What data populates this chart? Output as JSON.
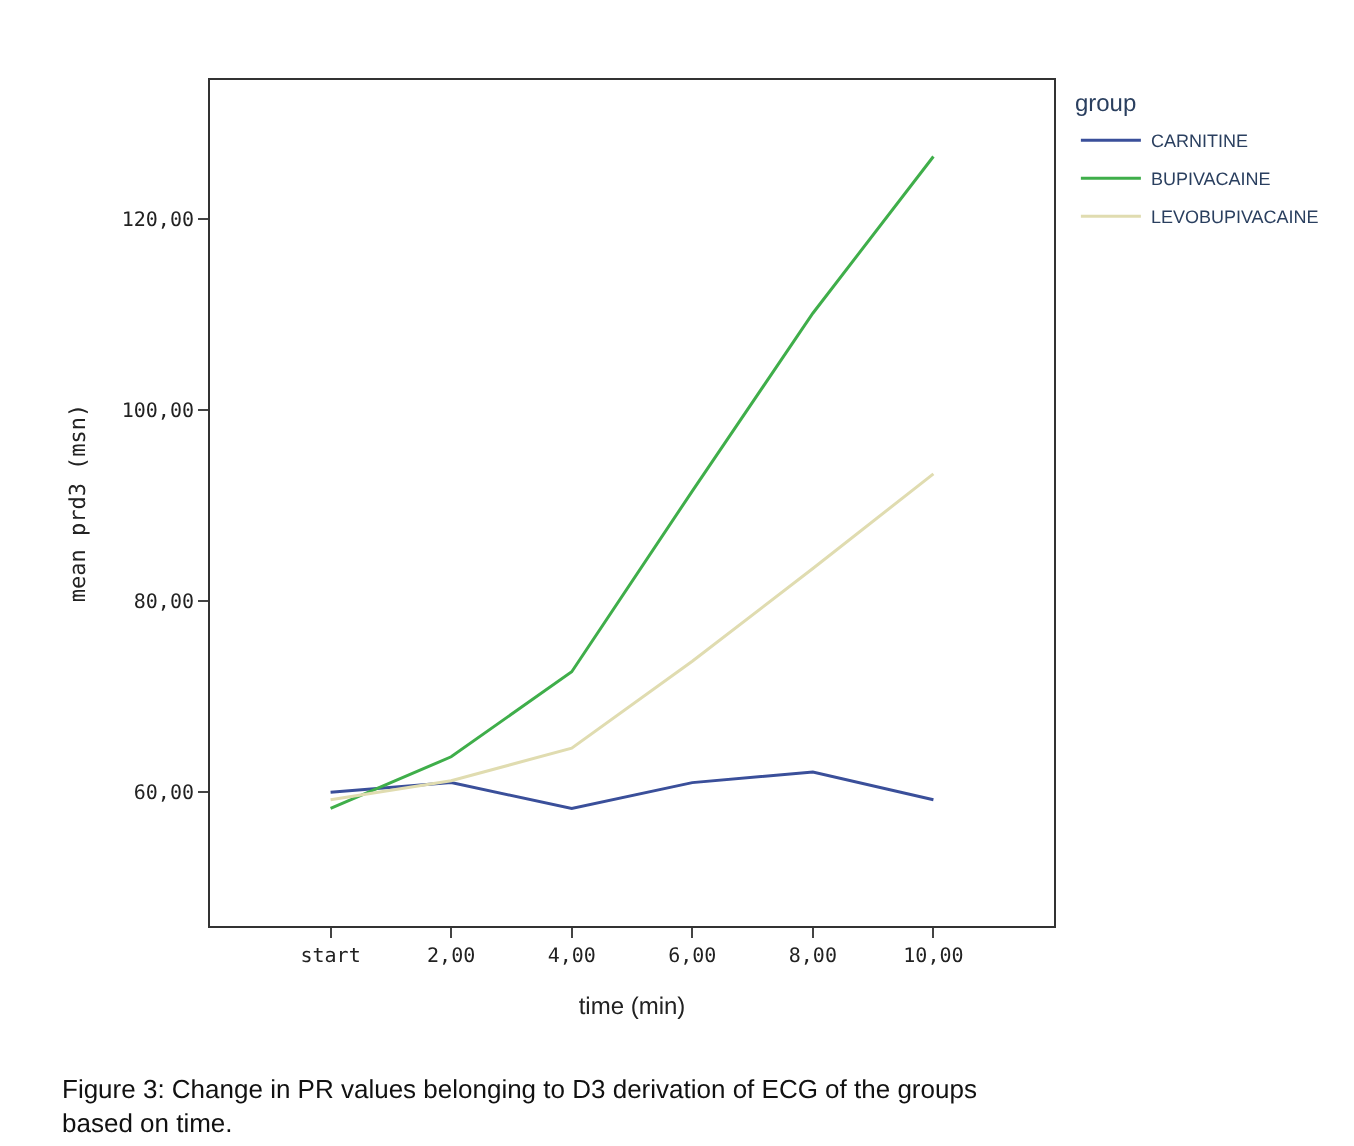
{
  "chart_data": {
    "type": "line",
    "xlabel": "time (min)",
    "ylabel": "mean prd3 (msn)",
    "legend_title": "group",
    "categories": [
      "start",
      "2,00",
      "4,00",
      "6,00",
      "8,00",
      "10,00"
    ],
    "series": [
      {
        "name": "CARNITINE",
        "color": "#3a4f9a",
        "values": [
          60.0,
          61.0,
          58.3,
          61.0,
          62.1,
          59.2
        ]
      },
      {
        "name": "BUPIVACAINE",
        "color": "#3fae4a",
        "values": [
          58.3,
          63.7,
          72.6,
          91.5,
          110.1,
          126.5
        ]
      },
      {
        "name": "LEVOBUPIVACAINE",
        "color": "#e0dcb0",
        "values": [
          59.2,
          61.2,
          64.6,
          73.7,
          83.4,
          93.3
        ]
      }
    ],
    "ylim": [
      46,
      134.5
    ],
    "yticks": [
      {
        "value": 60,
        "label": "60,00"
      },
      {
        "value": 80,
        "label": "80,00"
      },
      {
        "value": 100,
        "label": "100,00"
      },
      {
        "value": 120,
        "label": "120,00"
      }
    ],
    "legend": "top right",
    "marker": "none",
    "line_style": "solid",
    "annotations": [
      "Figure 3: Change in PR values belonging to D3 derivation of ECG of the groups based on time."
    ]
  }
}
